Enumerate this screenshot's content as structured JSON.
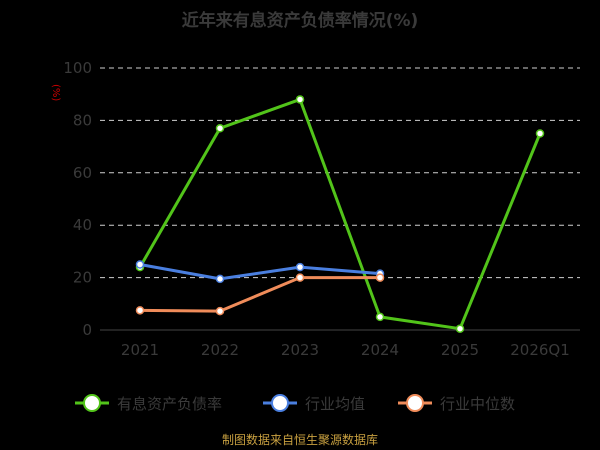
{
  "chart_data": {
    "type": "line",
    "title": "近年来有息资产负债率情况(%)",
    "unit_label": "(%)",
    "categories": [
      "2021",
      "2022",
      "2023",
      "2024",
      "2025",
      "2026Q1"
    ],
    "ylim": [
      0,
      100
    ],
    "yticks": [
      0,
      20,
      40,
      60,
      80,
      100
    ],
    "grid": true,
    "legend_position": "bottom",
    "series": [
      {
        "name": "有息资产负债率",
        "color": "#52c41a",
        "values": [
          24,
          77,
          88,
          5,
          0.5,
          75
        ]
      },
      {
        "name": "行业均值",
        "color": "#4a7fe0",
        "values": [
          25,
          19.5,
          24,
          21.5,
          null,
          null
        ]
      },
      {
        "name": "行业中位数",
        "color": "#f08c5a",
        "values": [
          7.5,
          7.2,
          20,
          20,
          null,
          null
        ]
      }
    ]
  },
  "footer": "制图数据来自恒生聚源数据库"
}
